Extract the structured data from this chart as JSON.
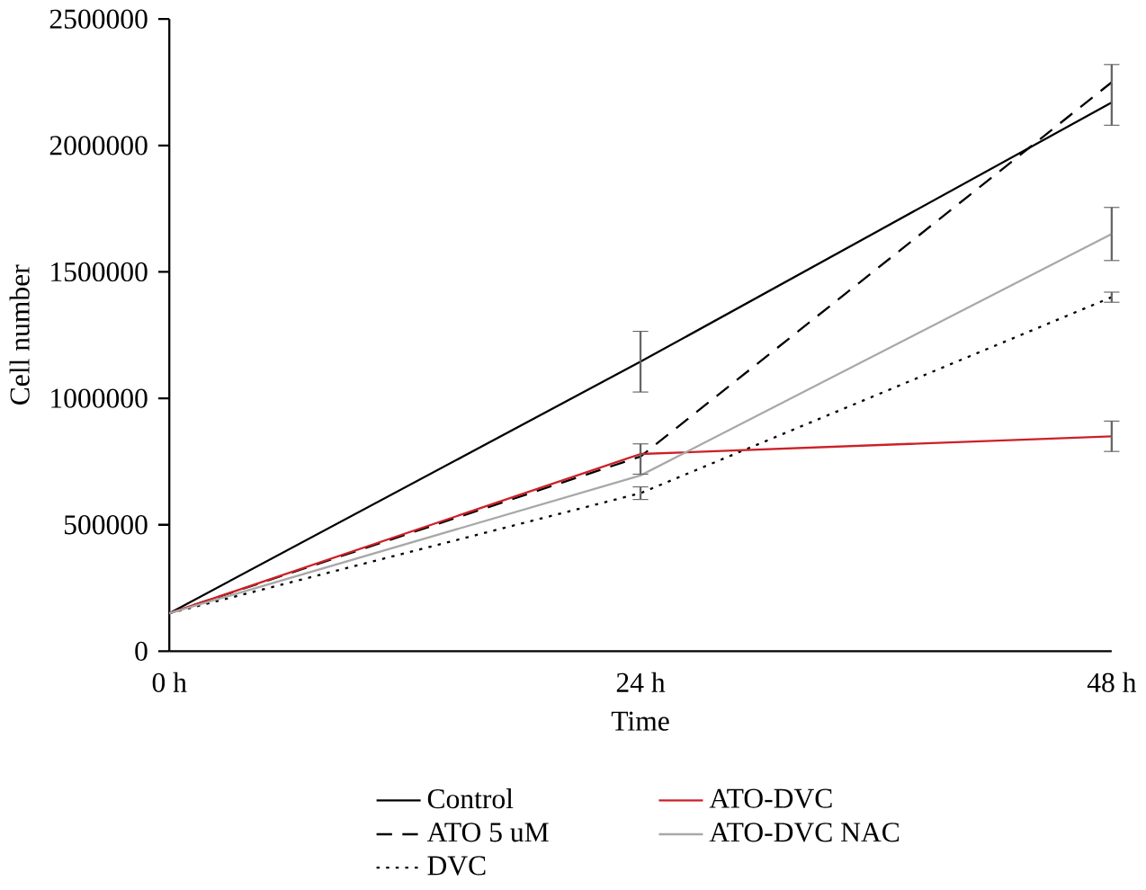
{
  "chart_data": {
    "type": "line",
    "xlabel": "Time",
    "ylabel": "Cell number",
    "categories": [
      "0 h",
      "24 h",
      "48 h"
    ],
    "ylim": [
      0,
      2500000
    ],
    "yticks": [
      0,
      500000,
      1000000,
      1500000,
      2000000,
      2500000
    ],
    "legend": "bottom",
    "marker": "none",
    "series": [
      {
        "name": "Control",
        "color": "#000000",
        "line_style": "solid",
        "values": [
          150000,
          1145000,
          2170000
        ],
        "errors": [
          null,
          120000,
          null
        ]
      },
      {
        "name": "ATO 5 uM",
        "color": "#000000",
        "line_style": "dashed",
        "values": [
          150000,
          770000,
          2250000
        ],
        "errors": [
          null,
          [
            700000,
            820000
          ],
          [
            2080000,
            2320000
          ]
        ]
      },
      {
        "name": "DVC",
        "color": "#000000",
        "line_style": "dotted",
        "values": [
          150000,
          625000,
          1400000
        ],
        "errors": [
          null,
          25000,
          20000
        ]
      },
      {
        "name": "ATO-DVC",
        "color": "#cc2027",
        "line_style": "solid",
        "values": [
          150000,
          780000,
          850000
        ],
        "errors": [
          null,
          null,
          60000
        ]
      },
      {
        "name": "ATO-DVC NAC",
        "color": "#a8a8a8",
        "line_style": "solid",
        "values": [
          150000,
          695000,
          1650000
        ],
        "errors": [
          null,
          null,
          105000
        ]
      }
    ]
  }
}
